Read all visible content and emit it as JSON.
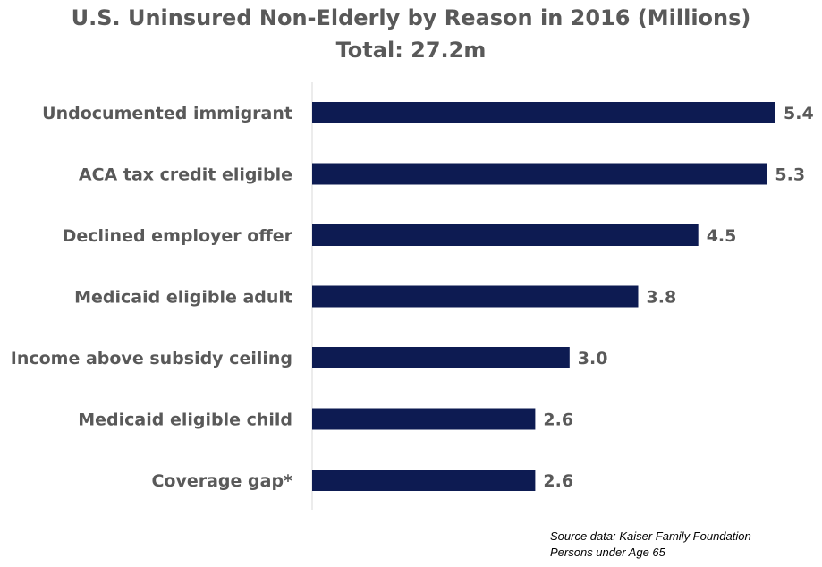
{
  "chart_data": {
    "type": "bar",
    "orientation": "horizontal",
    "title": "U.S. Uninsured Non-Elderly by Reason in 2016 (Millions)",
    "subtitle": "Total:  27.2m",
    "categories": [
      "Undocumented immigrant",
      "ACA tax credit eligible",
      "Declined employer offer",
      "Medicaid eligible adult",
      "Income above subsidy ceiling",
      "Medicaid eligible child",
      "Coverage gap*"
    ],
    "values": [
      5.4,
      5.3,
      4.5,
      3.8,
      3.0,
      2.6,
      2.6
    ],
    "value_labels": [
      "5.4",
      "5.3",
      "4.5",
      "3.8",
      "3.0",
      "2.6",
      "2.6"
    ],
    "xlim": [
      0,
      5.4
    ],
    "grid": false,
    "bar_color": "#0d1b52",
    "text_color": "#595959",
    "notes": [
      "Source data:  Kaiser Family Foundation",
      "Persons under Age 65"
    ]
  }
}
